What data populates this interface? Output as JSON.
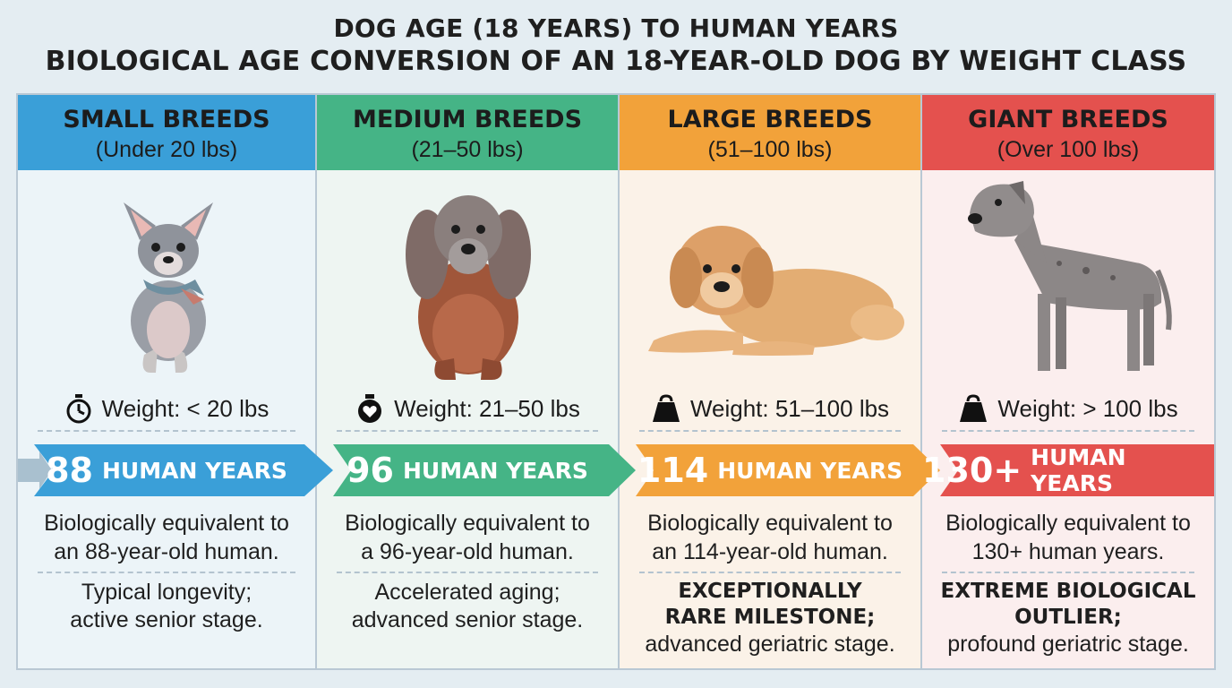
{
  "title": {
    "line1": "DOG AGE (18 YEARS) TO HUMAN YEARS",
    "line2": "BIOLOGICAL AGE CONVERSION OF AN 18-YEAR-OLD DOG BY WEIGHT CLASS"
  },
  "columns": [
    {
      "name": "SMALL BREEDS",
      "range": "(Under 20 lbs)",
      "color": "#3a9fd8",
      "bg": "#ecf4f8",
      "weight_icon": "stopwatch-icon",
      "weight_label": "Weight: < 20 lbs",
      "dog_image": "chihuahua-illustration",
      "years_number": "88",
      "years_unit": "HUMAN YEARS",
      "desc_line1": "Biologically equivalent to",
      "desc_line2": "an 88-year-old human.",
      "note_bold1": "",
      "note_bold2": "",
      "note_line1": "Typical longevity;",
      "note_line2": "active senior stage."
    },
    {
      "name": "MEDIUM BREEDS",
      "range": "(21–50 lbs)",
      "color": "#45b486",
      "bg": "#eef5f2",
      "weight_icon": "heart-weight-icon",
      "weight_label": "Weight: 21–50 lbs",
      "dog_image": "cocker-spaniel-illustration",
      "years_number": "96",
      "years_unit": "HUMAN YEARS",
      "desc_line1": "Biologically equivalent to",
      "desc_line2": "a 96-year-old human.",
      "note_bold1": "",
      "note_bold2": "",
      "note_line1": "Accelerated aging;",
      "note_line2": "advanced senior stage."
    },
    {
      "name": "LARGE BREEDS",
      "range": "(51–100 lbs)",
      "color": "#f2a23a",
      "bg": "#fbf2e8",
      "weight_icon": "kettlebell-icon",
      "weight_label": "Weight: 51–100 lbs",
      "dog_image": "golden-retriever-illustration",
      "years_number": "114",
      "years_unit": "HUMAN YEARS",
      "desc_line1": "Biologically equivalent to",
      "desc_line2": "an 114-year-old human.",
      "note_bold1": "EXCEPTIONALLY",
      "note_bold2": "RARE MILESTONE;",
      "note_line1": "advanced geriatric stage.",
      "note_line2": ""
    },
    {
      "name": "GIANT BREEDS",
      "range": "(Over 100 lbs)",
      "color": "#e4514e",
      "bg": "#fbeeee",
      "weight_icon": "kettlebell-icon",
      "weight_label": "Weight: > 100 lbs",
      "dog_image": "great-dane-illustration",
      "years_number": "130+",
      "years_unit": "HUMAN YEARS",
      "desc_line1": "Biologically equivalent to",
      "desc_line2": "130+ human years.",
      "note_bold1": "EXTREME BIOLOGICAL",
      "note_bold2": "OUTLIER;",
      "note_line1": "profound geriatric stage.",
      "note_line2": ""
    }
  ]
}
